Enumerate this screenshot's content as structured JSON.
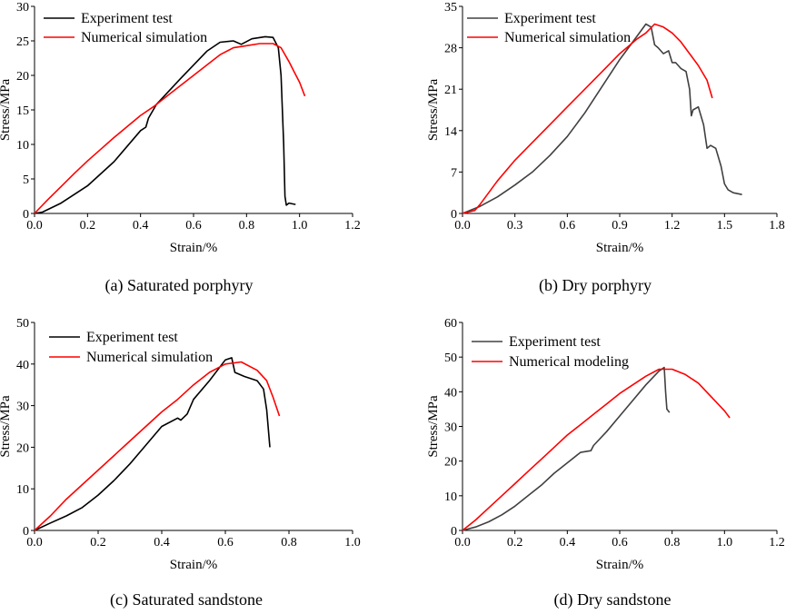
{
  "figure_title": "",
  "chart_data": [
    {
      "type": "line",
      "caption": "(a) Saturated porphyry",
      "xlabel": "Strain/%",
      "ylabel": "Stress/MPa",
      "xlim": [
        0,
        1.2
      ],
      "ylim": [
        0,
        30
      ],
      "xticks": [
        "0.0",
        "0.2",
        "0.4",
        "0.6",
        "0.8",
        "1.0",
        "1.2"
      ],
      "yticks": [
        "0",
        "5",
        "10",
        "15",
        "20",
        "25",
        "30"
      ],
      "legend_position": "top-left",
      "series": [
        {
          "name": "Experiment test",
          "color": "#000000",
          "x": [
            0,
            0.03,
            0.1,
            0.2,
            0.3,
            0.4,
            0.42,
            0.43,
            0.46,
            0.55,
            0.65,
            0.7,
            0.75,
            0.78,
            0.82,
            0.87,
            0.9,
            0.92,
            0.93,
            0.94,
            0.945,
            0.95,
            0.96,
            0.985
          ],
          "y": [
            0,
            0.2,
            1.5,
            4.0,
            7.5,
            12.0,
            12.5,
            13.8,
            15.8,
            19.5,
            23.5,
            24.8,
            25.0,
            24.5,
            25.3,
            25.6,
            25.5,
            24.0,
            20.0,
            10.0,
            2.5,
            1.2,
            1.5,
            1.3
          ]
        },
        {
          "name": "Numerical simulation",
          "color": "#ff0000",
          "x": [
            0,
            0.05,
            0.1,
            0.15,
            0.2,
            0.25,
            0.3,
            0.35,
            0.4,
            0.45,
            0.5,
            0.55,
            0.6,
            0.65,
            0.7,
            0.75,
            0.8,
            0.85,
            0.9,
            0.93,
            0.96,
            0.98,
            1.0,
            1.02
          ],
          "y": [
            0,
            2.0,
            3.9,
            5.8,
            7.6,
            9.3,
            11.0,
            12.6,
            14.2,
            15.5,
            17.0,
            18.5,
            20.0,
            21.5,
            23.0,
            24.0,
            24.3,
            24.6,
            24.6,
            24.0,
            22.0,
            20.5,
            19.0,
            17.0
          ]
        }
      ]
    },
    {
      "type": "line",
      "caption": "(b) Dry porphyry",
      "xlabel": "Strain/%",
      "ylabel": "Stress/MPa",
      "xlim": [
        0,
        1.8
      ],
      "ylim": [
        0,
        35
      ],
      "xticks": [
        "0.0",
        "0.3",
        "0.6",
        "0.9",
        "1.2",
        "1.5",
        "1.8"
      ],
      "yticks": [
        "0",
        "7",
        "14",
        "21",
        "28",
        "35"
      ],
      "legend_position": "top-left",
      "series": [
        {
          "name": "Experiment test",
          "color": "#404040",
          "x": [
            0,
            0.1,
            0.2,
            0.3,
            0.4,
            0.5,
            0.6,
            0.7,
            0.8,
            0.9,
            1.0,
            1.05,
            1.08,
            1.1,
            1.12,
            1.15,
            1.18,
            1.2,
            1.22,
            1.25,
            1.28,
            1.3,
            1.31,
            1.32,
            1.35,
            1.38,
            1.4,
            1.42,
            1.45,
            1.48,
            1.5,
            1.52,
            1.55,
            1.6
          ],
          "y": [
            0,
            1.2,
            2.8,
            4.8,
            7.0,
            9.8,
            13.0,
            17.0,
            21.5,
            26.0,
            30.0,
            32.0,
            31.5,
            28.5,
            28.0,
            27.0,
            27.5,
            25.5,
            25.5,
            24.5,
            24.0,
            21.0,
            16.5,
            17.5,
            18.0,
            15.0,
            11.0,
            11.5,
            11.0,
            8.0,
            5.0,
            4.0,
            3.5,
            3.2
          ]
        },
        {
          "name": "Numerical simulation",
          "color": "#ff0000",
          "x": [
            0,
            0.07,
            0.1,
            0.2,
            0.3,
            0.4,
            0.5,
            0.6,
            0.7,
            0.8,
            0.9,
            1.0,
            1.05,
            1.1,
            1.15,
            1.2,
            1.25,
            1.3,
            1.35,
            1.4,
            1.43
          ],
          "y": [
            0,
            0.5,
            1.5,
            5.5,
            9.0,
            12.0,
            15.0,
            18.0,
            21.0,
            24.0,
            27.0,
            29.5,
            30.5,
            32.0,
            31.5,
            30.5,
            29.0,
            27.0,
            25.0,
            22.5,
            19.5
          ]
        }
      ]
    },
    {
      "type": "line",
      "caption": "(c) Saturated sandstone",
      "xlabel": "Strain/%",
      "ylabel": "Stress/MPa",
      "xlim": [
        0,
        1.0
      ],
      "ylim": [
        0,
        50
      ],
      "xticks": [
        "0.0",
        "0.2",
        "0.4",
        "0.6",
        "0.8",
        "1.0"
      ],
      "yticks": [
        "0",
        "10",
        "20",
        "30",
        "40",
        "50"
      ],
      "legend_position": "top-left",
      "series": [
        {
          "name": "Experiment test",
          "color": "#000000",
          "x": [
            0,
            0.05,
            0.1,
            0.15,
            0.2,
            0.25,
            0.3,
            0.35,
            0.4,
            0.45,
            0.46,
            0.48,
            0.5,
            0.55,
            0.6,
            0.62,
            0.63,
            0.66,
            0.7,
            0.72,
            0.73,
            0.74
          ],
          "y": [
            0,
            1.8,
            3.5,
            5.5,
            8.5,
            12.0,
            16.0,
            20.5,
            25.0,
            27.0,
            26.5,
            28.0,
            31.5,
            36.0,
            41.0,
            41.5,
            38.0,
            37.0,
            36.0,
            34.0,
            29.0,
            20.0
          ]
        },
        {
          "name": "Numerical simulation",
          "color": "#ff0000",
          "x": [
            0,
            0.05,
            0.1,
            0.15,
            0.2,
            0.25,
            0.3,
            0.35,
            0.4,
            0.45,
            0.5,
            0.55,
            0.6,
            0.65,
            0.7,
            0.73,
            0.75,
            0.77
          ],
          "y": [
            0,
            3.5,
            7.5,
            11.0,
            14.5,
            18.0,
            21.5,
            25.0,
            28.5,
            31.5,
            35.0,
            38.0,
            40.0,
            40.5,
            38.5,
            36.0,
            32.0,
            27.5
          ]
        }
      ]
    },
    {
      "type": "line",
      "caption": "(d) Dry sandstone",
      "xlabel": "Strain/%",
      "ylabel": "Stress/MPa",
      "xlim": [
        0,
        1.2
      ],
      "ylim": [
        0,
        60
      ],
      "xticks": [
        "0.0",
        "0.2",
        "0.4",
        "0.6",
        "0.8",
        "1.0",
        "1.2"
      ],
      "yticks": [
        "0",
        "10",
        "20",
        "30",
        "40",
        "50",
        "60"
      ],
      "legend_position": "top-left",
      "series": [
        {
          "name": "Experiment test",
          "color": "#404040",
          "x": [
            0,
            0.05,
            0.1,
            0.15,
            0.2,
            0.25,
            0.3,
            0.35,
            0.4,
            0.45,
            0.49,
            0.5,
            0.55,
            0.6,
            0.65,
            0.7,
            0.75,
            0.77,
            0.775,
            0.78,
            0.79
          ],
          "y": [
            0,
            1.0,
            2.5,
            4.5,
            7.0,
            10.0,
            13.0,
            16.5,
            19.5,
            22.5,
            23.0,
            24.5,
            28.5,
            33.0,
            37.5,
            42.0,
            46.0,
            47.0,
            40.0,
            35.0,
            34.0
          ]
        },
        {
          "name": "Numerical modeling",
          "color": "#ff0000",
          "x": [
            0,
            0.05,
            0.1,
            0.15,
            0.2,
            0.25,
            0.3,
            0.35,
            0.4,
            0.45,
            0.5,
            0.55,
            0.6,
            0.65,
            0.7,
            0.75,
            0.8,
            0.85,
            0.9,
            0.95,
            1.0,
            1.02
          ],
          "y": [
            0,
            3.0,
            6.5,
            10.0,
            13.5,
            17.0,
            20.5,
            24.0,
            27.5,
            30.5,
            33.5,
            36.5,
            39.5,
            42.0,
            44.5,
            46.5,
            46.5,
            45.0,
            42.5,
            38.5,
            34.5,
            32.5
          ]
        }
      ]
    }
  ]
}
